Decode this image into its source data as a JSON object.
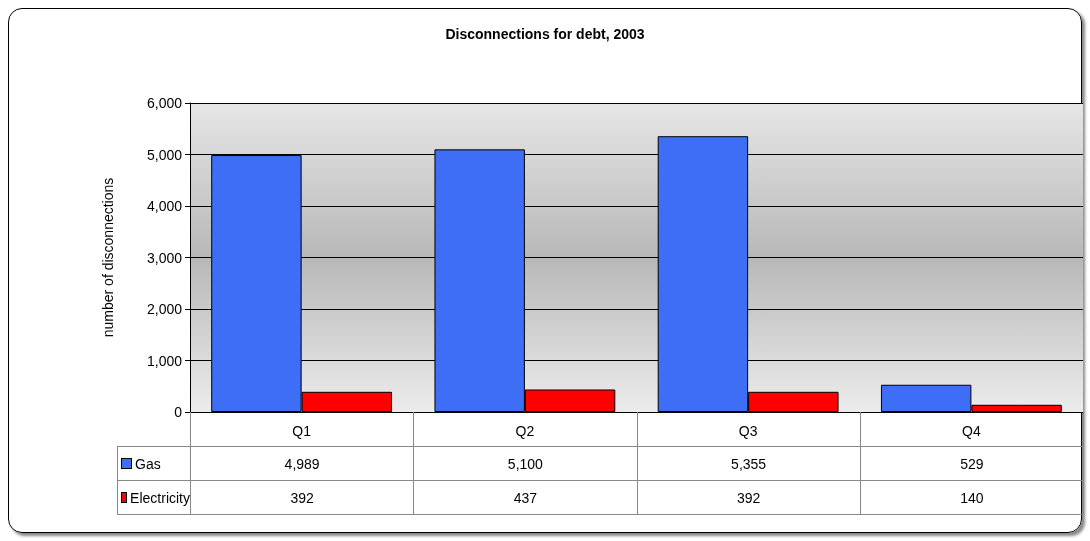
{
  "chart_data": {
    "type": "bar",
    "title": "Disconnections for debt, 2003",
    "ylabel": "number of disconnections",
    "categories": [
      "Q1",
      "Q2",
      "Q3",
      "Q4"
    ],
    "series": [
      {
        "name": "Gas",
        "color": "#3d6ef5",
        "values": [
          4989,
          5100,
          5355,
          529
        ],
        "value_labels": [
          "4,989",
          "5,100",
          "5,355",
          "529"
        ]
      },
      {
        "name": "Electricity",
        "color": "#ff0000",
        "values": [
          392,
          437,
          392,
          140
        ],
        "value_labels": [
          "392",
          "437",
          "392",
          "140"
        ]
      }
    ],
    "ylim": [
      0,
      6000
    ],
    "yticks": [
      {
        "value": 0,
        "label": "0"
      },
      {
        "value": 1000,
        "label": "1,000"
      },
      {
        "value": 2000,
        "label": "2,000"
      },
      {
        "value": 3000,
        "label": "3,000"
      },
      {
        "value": 4000,
        "label": "4,000"
      },
      {
        "value": 5000,
        "label": "5,000"
      },
      {
        "value": 6000,
        "label": "6,000"
      }
    ],
    "grid": "y",
    "legend": "bottom left"
  }
}
